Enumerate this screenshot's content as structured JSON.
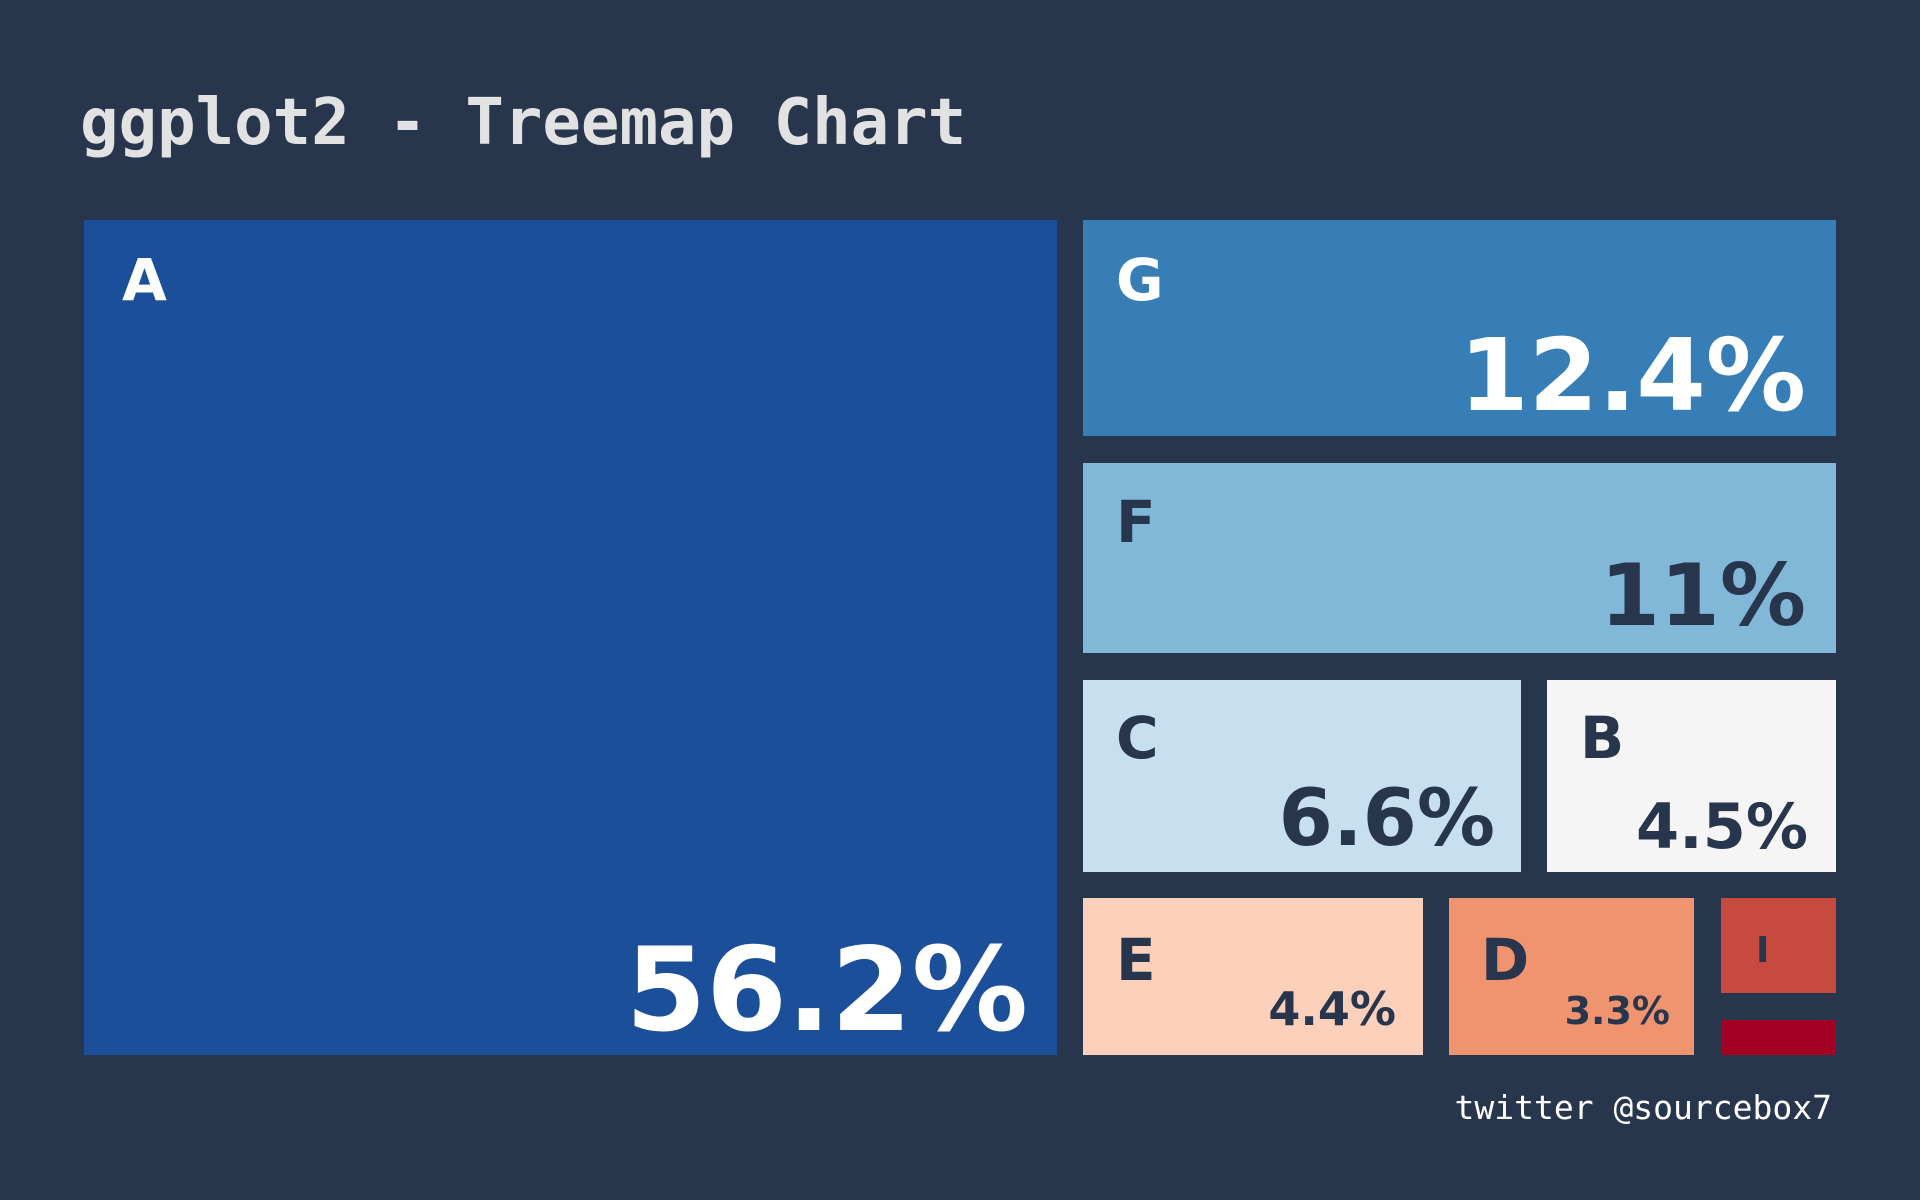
{
  "title": "ggplot2 - Treemap Chart",
  "caption": "twitter @sourcebox7",
  "colors": {
    "background": "#27364c",
    "dark_text": "#27364c",
    "light_text": "#ffffff"
  },
  "chart_data": {
    "type": "treemap",
    "title": "ggplot2 - Treemap Chart",
    "tiles": [
      {
        "label": "A",
        "value_label": "56.2%",
        "value": 56.2,
        "color": "#1c4f99",
        "text_color": "#ffffff"
      },
      {
        "label": "G",
        "value_label": "12.4%",
        "value": 12.4,
        "color": "#387eb6",
        "text_color": "#ffffff"
      },
      {
        "label": "F",
        "value_label": "11%",
        "value": 11.0,
        "color": "#81b7d7",
        "text_color": "#27364c"
      },
      {
        "label": "C",
        "value_label": "6.6%",
        "value": 6.6,
        "color": "#c7dfee",
        "text_color": "#27364c"
      },
      {
        "label": "B",
        "value_label": "4.5%",
        "value": 4.5,
        "color": "#f5f5f5",
        "text_color": "#27364c"
      },
      {
        "label": "E",
        "value_label": "4.4%",
        "value": 4.4,
        "color": "#fcd0ba",
        "text_color": "#27364c"
      },
      {
        "label": "D",
        "value_label": "3.3%",
        "value": 3.3,
        "color": "#f0936f",
        "text_color": "#27364c"
      },
      {
        "label": "I",
        "value_label": "",
        "value": 1.1,
        "color": "#c74a3e",
        "text_color": "#27364c"
      },
      {
        "label": "",
        "value_label": "",
        "value": 0.5,
        "color": "#a20023",
        "text_color": "#27364c"
      }
    ]
  }
}
